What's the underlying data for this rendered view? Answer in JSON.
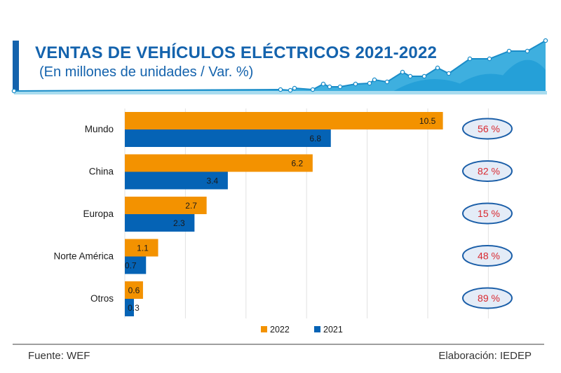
{
  "header": {
    "title": "VENTAS DE VEHÍCULOS ELÉCTRICOS 2021-2022",
    "subtitle": "(En millones de unidades / Var. %)"
  },
  "footer": {
    "source": "Fuente: WEF",
    "credit": "Elaboración: IEDEP"
  },
  "colors": {
    "series_2022": "#f39200",
    "series_2021": "#0563b5",
    "title": "#1463ad",
    "badge_text": "#d9282f",
    "badge_border": "#1a5ea8",
    "badge_fill": "#e4ecf7"
  },
  "chart_data": {
    "type": "bar",
    "orientation": "horizontal",
    "title": "VENTAS DE VEHÍCULOS ELÉCTRICOS 2021-2022",
    "subtitle": "(En millones de unidades / Var. %)",
    "xlabel": "",
    "ylabel": "",
    "categories": [
      "Mundo",
      "China",
      "Europa",
      "Norte América",
      "Otros"
    ],
    "series": [
      {
        "name": "2022",
        "values": [
          10.5,
          6.2,
          2.7,
          1.1,
          0.6
        ]
      },
      {
        "name": "2021",
        "values": [
          6.8,
          3.4,
          2.3,
          0.7,
          0.3
        ]
      }
    ],
    "variation_labels": [
      "56 %",
      "82 %",
      "15 %",
      "48 %",
      "89 %"
    ],
    "xlim": [
      0,
      14
    ],
    "grid_step": 2,
    "grid": true,
    "legend": {
      "position": "bottom-center",
      "entries": [
        "2022",
        "2021"
      ]
    }
  }
}
